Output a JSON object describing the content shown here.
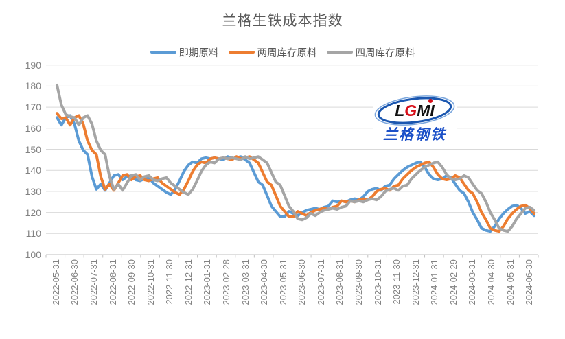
{
  "title": "兰格生铁成本指数",
  "logo": {
    "acronym": "LGMI",
    "name": "兰格钢铁"
  },
  "colors": {
    "series_blue": "#5B9BD5",
    "series_orange": "#ED7D31",
    "series_gray": "#A5A5A5",
    "gridline": "#D9D9D9",
    "axis_line": "#BFBFBF",
    "title_text": "#595959",
    "axis_text": "#828282",
    "logo_blue": "#1b50c8",
    "logo_red": "#d70f19"
  },
  "chart_data": {
    "type": "line",
    "title": "兰格生铁成本指数",
    "xlabel": "",
    "ylabel": "",
    "ylim": [
      100,
      190
    ],
    "y_ticks": [
      100,
      110,
      120,
      130,
      140,
      150,
      160,
      170,
      180,
      190
    ],
    "grid": "horizontal",
    "legend_position": "top",
    "x_unit": "week",
    "x_start": "2022-05-31",
    "x_end": "2024-06-30",
    "x_labels": [
      "2022-05-31",
      "2022-06-30",
      "2022-07-31",
      "2022-08-31",
      "2022-09-30",
      "2022-10-31",
      "2022-11-30",
      "2022-12-31",
      "2023-01-31",
      "2023-02-28",
      "2023-03-31",
      "2023-04-30",
      "2023-05-31",
      "2023-06-30",
      "2023-07-31",
      "2023-08-31",
      "2023-09-30",
      "2023-10-31",
      "2023-11-30",
      "2023-12-31",
      "2024-01-31",
      "2024-02-29",
      "2024-03-31",
      "2024-04-30",
      "2024-05-31",
      "2024-06-30"
    ],
    "series": [
      {
        "name": "即期原料",
        "color": "#5B9BD5",
        "values": [
          165,
          161.5,
          165,
          166,
          162,
          154,
          149.5,
          147.5,
          137,
          131,
          133.5,
          130.5,
          134,
          137.5,
          138,
          135.5,
          137,
          137.5,
          135.5,
          135,
          136,
          136.5,
          134,
          132.5,
          131,
          129.5,
          128.5,
          131,
          135,
          139.5,
          142.5,
          144,
          143.5,
          145.5,
          146,
          145.5,
          146,
          145.5,
          145,
          146.5,
          145.5,
          146,
          146.5,
          145,
          143.5,
          139,
          134.5,
          133,
          128,
          123,
          120.5,
          118,
          118,
          120.5,
          119.5,
          118.5,
          120,
          121,
          121.5,
          122,
          121.5,
          122.5,
          123,
          125.5,
          125,
          125.5,
          125,
          126,
          126.5,
          126,
          127.5,
          130,
          131,
          131.5,
          130.5,
          132.5,
          133,
          136,
          138,
          140,
          141.5,
          142.5,
          143.5,
          144,
          141.5,
          138,
          136,
          135.5,
          136,
          137.5,
          136.5,
          133.5,
          130.5,
          129,
          125,
          120,
          116.5,
          112.5,
          111.5,
          111,
          113.5,
          117,
          119.5,
          121.5,
          123,
          123.5,
          122,
          119.5,
          120.5,
          118.5
        ]
      },
      {
        "name": "两周库存原料",
        "color": "#ED7D31",
        "values": [
          167,
          164.5,
          165,
          161.5,
          165,
          166,
          162,
          154,
          149.5,
          147.5,
          137,
          131,
          133.5,
          130.5,
          134,
          137.5,
          138,
          135.5,
          137,
          137.5,
          135.5,
          135,
          136,
          136.5,
          134,
          132.5,
          131,
          129.5,
          128.5,
          131,
          135,
          139.5,
          142.5,
          144,
          143.5,
          145.5,
          146,
          145.5,
          146,
          145.5,
          145,
          146.5,
          145.5,
          146,
          146.5,
          145,
          143.5,
          139,
          134.5,
          133,
          128,
          123,
          120.5,
          118,
          118,
          120.5,
          119.5,
          118.5,
          120,
          121,
          121.5,
          122,
          121.5,
          122.5,
          123,
          125.5,
          125,
          125.5,
          125,
          126,
          126.5,
          126,
          127.5,
          130,
          131,
          131.5,
          130.5,
          132.5,
          133,
          136,
          138,
          140,
          141.5,
          142.5,
          143.5,
          144,
          141.5,
          138,
          136,
          135.5,
          136,
          137.5,
          136.5,
          133.5,
          130.5,
          129,
          125,
          120,
          116.5,
          112.5,
          111.5,
          111,
          113.5,
          117,
          119.5,
          121.5,
          123,
          123.5,
          122,
          119.5
        ]
      },
      {
        "name": "四周库存原料",
        "color": "#A5A5A5",
        "values": [
          180.5,
          171,
          166.5,
          165.5,
          165,
          161.5,
          165,
          166,
          162,
          154,
          149.5,
          147.5,
          137,
          131,
          133.5,
          130.5,
          134,
          137.5,
          138,
          135.5,
          137,
          137.5,
          135.5,
          135,
          136,
          136.5,
          134,
          132.5,
          131,
          129.5,
          128.5,
          131,
          135,
          139.5,
          142.5,
          144,
          143.5,
          145.5,
          146,
          145.5,
          146,
          145.5,
          145,
          146.5,
          145.5,
          146,
          146.5,
          145,
          143.5,
          139,
          134.5,
          133,
          128,
          123,
          120.5,
          117,
          116.5,
          117.5,
          119.5,
          118.5,
          120,
          121,
          121.5,
          122,
          121.5,
          122.5,
          123,
          125.5,
          125,
          125.5,
          125,
          126,
          126.5,
          126,
          127.5,
          130,
          131,
          131.5,
          130.5,
          132.5,
          133,
          136,
          138,
          140,
          141.5,
          142.5,
          143.5,
          144,
          141.5,
          138,
          136,
          135.5,
          136,
          137.5,
          136.5,
          133.5,
          130.5,
          129,
          125,
          120,
          116.5,
          112.5,
          111.5,
          111,
          113.5,
          117,
          119.5,
          122,
          122.5,
          121
        ]
      }
    ]
  }
}
